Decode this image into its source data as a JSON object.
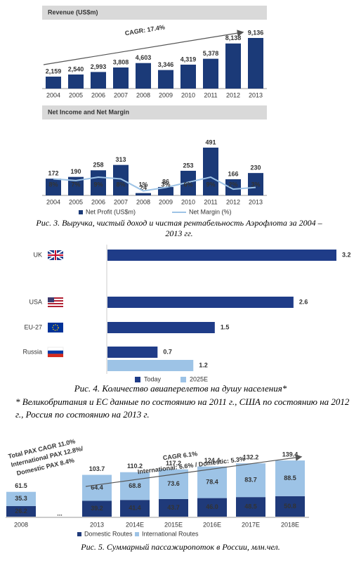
{
  "chart_data": [
    {
      "type": "bar",
      "title": "Revenue (US$m)",
      "categories": [
        "2004",
        "2005",
        "2006",
        "2007",
        "2008",
        "2009",
        "2010",
        "2011",
        "2012",
        "2013"
      ],
      "values": [
        2159,
        2540,
        2993,
        3808,
        4603,
        3346,
        4319,
        5378,
        8138,
        9136
      ],
      "value_labels": [
        "2,159",
        "2,540",
        "2,993",
        "3,808",
        "4,603",
        "3,346",
        "4,319",
        "5,378",
        "8,138",
        "9,136"
      ],
      "color": "#1b3a78",
      "annotation": "CAGR: 17.4%"
    },
    {
      "type": "bar-line",
      "title": "Net Income and Net Margin",
      "categories": [
        "2004",
        "2005",
        "2006",
        "2007",
        "2008",
        "2009",
        "2010",
        "2011",
        "2012",
        "2013"
      ],
      "series": [
        {
          "name": "Net Profit (US$m)",
          "color": "#1b3a78",
          "values": [
            172,
            190,
            258,
            313,
            24,
            86,
            253,
            491,
            166,
            230
          ]
        },
        {
          "name": "Net Margin (%)",
          "color": "#9dc3e6",
          "axis": "y2",
          "values": [
            8,
            7,
            9,
            8,
            1,
            3,
            6,
            9,
            2,
            3
          ],
          "value_labels": [
            "8%",
            "7%",
            "9%",
            "8%",
            "1%",
            "3%",
            "6%",
            "9%",
            "2%",
            "3%"
          ]
        }
      ]
    },
    {
      "type": "hbar",
      "categories": [
        "UK",
        "USA",
        "EU-27",
        "Russia"
      ],
      "series": [
        {
          "name": "Today",
          "color": "#1f3c88",
          "values": [
            3.2,
            2.6,
            1.5,
            0.7
          ]
        },
        {
          "name": "2025E",
          "color": "#9dc3e6",
          "values": [
            null,
            null,
            null,
            1.2
          ]
        }
      ]
    },
    {
      "type": "stacked-bar",
      "categories": [
        "2008",
        "...",
        "2013",
        "2014E",
        "2015E",
        "2016E",
        "2017E",
        "2018E"
      ],
      "series": [
        {
          "name": "Domestic Routes",
          "color": "#1f3a7a",
          "values": [
            26.2,
            null,
            39.2,
            41.4,
            43.7,
            46.0,
            48.5,
            50.8
          ],
          "value_labels": [
            "26.2",
            null,
            "39.2",
            "41.4",
            "43.7",
            "46.0",
            "48.5",
            "50.8"
          ]
        },
        {
          "name": "International Routes",
          "color": "#9dc3e6",
          "values": [
            35.3,
            null,
            64.4,
            68.8,
            73.6,
            78.4,
            83.7,
            88.5
          ],
          "value_labels": [
            "35.3",
            null,
            "64.4",
            "68.8",
            "73.6",
            "78.4",
            "83.7",
            "88.5"
          ]
        }
      ],
      "totals": [
        61.5,
        null,
        103.7,
        110.2,
        117.2,
        124.4,
        132.2,
        139.4
      ],
      "annotations": [
        "Total PAX CAGR 11.0%",
        "International PAX 12.8%/",
        "Domestic PAX 8.4%",
        "CAGR 6.1%",
        "International: 6.6% / Domestic: 5.3%"
      ]
    }
  ],
  "captions": [
    "Рис. 3. Выручка, чистый доход и чистая рентабельность Аэрофлота за 2004 – 2013 гг.",
    "Рис. 4. Количество авиаперелетов на душу населения*",
    "* Великобритания и ЕС данные по состоянию на 2011 г., США по состоянию на 2012 г., Россия по состоянию на 2013 г.",
    "Рис. 5. Суммарный пассажиропоток в России, млн.чел."
  ]
}
